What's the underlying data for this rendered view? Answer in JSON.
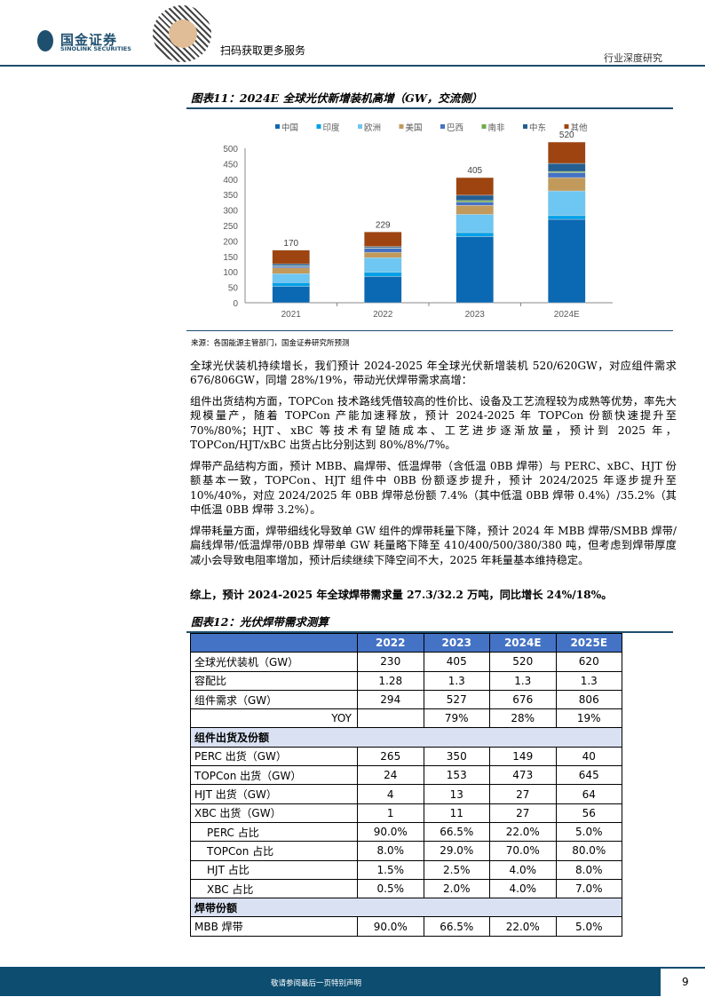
{
  "header": {
    "logo_cn": "国金证券",
    "logo_en": "SINOLINK SECURITIES",
    "scan_text": "扫码获取更多服务",
    "doc_type": "行业深度研究"
  },
  "figure11": {
    "title": "图表11：2024E 全球光伏新增装机高增（GW，交流侧）",
    "source": "来源：各国能源主管部门，国金证券研究所预测"
  },
  "chart_data": {
    "type": "bar",
    "stacked": true,
    "title": "2024E 全球光伏新增装机高增（GW，交流侧）",
    "categories": [
      "2021",
      "2022",
      "2023",
      "2024E"
    ],
    "totals": [
      "170",
      "229",
      "405",
      "520"
    ],
    "ylim": [
      0,
      500
    ],
    "yticks": [
      "0",
      "50",
      "100",
      "150",
      "200",
      "250",
      "300",
      "350",
      "400",
      "450",
      "500"
    ],
    "legend_position": "top",
    "series": [
      {
        "name": "中国",
        "color": "#0b68b3",
        "values": [
          53,
          85,
          214,
          270
        ]
      },
      {
        "name": "印度",
        "color": "#00a0e9",
        "values": [
          12,
          14,
          13,
          12
        ]
      },
      {
        "name": "欧洲",
        "color": "#6ec6f2",
        "values": [
          29,
          47,
          59,
          80
        ]
      },
      {
        "name": "美国",
        "color": "#c19a5b",
        "values": [
          19,
          17,
          29,
          43
        ]
      },
      {
        "name": "巴西",
        "color": "#4472c4",
        "values": [
          5,
          13,
          11,
          16
        ]
      },
      {
        "name": "南非",
        "color": "#70ad47",
        "values": [
          2,
          2,
          5,
          4
        ]
      },
      {
        "name": "中东",
        "color": "#255e91",
        "values": [
          6,
          4,
          17,
          26
        ]
      },
      {
        "name": "其他",
        "color": "#9e4410",
        "values": [
          44,
          47,
          57,
          69
        ]
      }
    ]
  },
  "paragraphs": [
    "全球光伏装机持续增长，我们预计 2024-2025 年全球光伏新增装机 520/620GW，对应组件需求 676/806GW，同增 28%/19%，带动光伏焊带需求高增：",
    "组件出货结构方面，TOPCon 技术路线凭借较高的性价比、设备及工艺流程较为成熟等优势，率先大规模量产，随着 TOPCon 产能加速释放，预计 2024-2025 年 TOPCon 份额快速提升至 70%/80%；HJT、xBC 等技术有望随成本、工艺进步逐渐放量，预计到 2025 年，TOPCon/HJT/xBC 出货占比分别达到 80%/8%/7%。",
    "焊带产品结构方面，预计 MBB、扁焊带、低温焊带（含低温 0BB 焊带）与 PERC、xBC、HJT 份额基本一致，TOPCon、HJT 组件中 0BB 份额逐步提升，预计 2024/2025 年逐步提升至 10%/40%，对应 2024/2025 年 0BB 焊带总份额 7.4%（其中低温 0BB 焊带 0.4%）/35.2%（其中低温 0BB 焊带 3.2%）。",
    "焊带耗量方面，焊带细线化导致单 GW 组件的焊带耗量下降，预计 2024 年 MBB 焊带/SMBB 焊带/扁线焊带/低温焊带/0BB 焊带单 GW 耗量略下降至 410/400/500/380/380 吨，但考虑到焊带厚度减小会导致电阻率增加，预计后续继续下降空间不大，2025 年耗量基本维持稳定。"
  ],
  "summary": "综上，预计 2024-2025 年全球焊带需求量 27.3/32.2 万吨，同比增长 24%/18%。",
  "figure12": {
    "title": "图表12：光伏焊带需求测算",
    "headers": [
      "",
      "2022",
      "2023",
      "2024E",
      "2025E"
    ],
    "rows": [
      {
        "type": "row",
        "cells": [
          "全球光伏装机（GW）",
          "230",
          "405",
          "520",
          "620"
        ]
      },
      {
        "type": "row",
        "cells": [
          "容配比",
          "1.28",
          "1.3",
          "1.3",
          "1.3"
        ]
      },
      {
        "type": "row",
        "cells": [
          "组件需求（GW）",
          "294",
          "527",
          "676",
          "806"
        ]
      },
      {
        "type": "yoy",
        "cells": [
          "YOY",
          "",
          "79%",
          "28%",
          "19%"
        ]
      },
      {
        "type": "section",
        "cells": [
          "组件出货及份额"
        ]
      },
      {
        "type": "row",
        "cells": [
          "PERC 出货（GW）",
          "265",
          "350",
          "149",
          "40"
        ]
      },
      {
        "type": "row",
        "cells": [
          "TOPCon 出货（GW）",
          "24",
          "153",
          "473",
          "645"
        ]
      },
      {
        "type": "row",
        "cells": [
          "HJT 出货（GW）",
          "4",
          "13",
          "27",
          "64"
        ]
      },
      {
        "type": "row",
        "cells": [
          "XBC 出货（GW）",
          "1",
          "11",
          "27",
          "56"
        ]
      },
      {
        "type": "indent",
        "cells": [
          "PERC 占比",
          "90.0%",
          "66.5%",
          "22.0%",
          "5.0%"
        ]
      },
      {
        "type": "indent",
        "cells": [
          "TOPCon 占比",
          "8.0%",
          "29.0%",
          "70.0%",
          "80.0%"
        ]
      },
      {
        "type": "indent",
        "cells": [
          "HJT 占比",
          "1.5%",
          "2.5%",
          "4.0%",
          "8.0%"
        ]
      },
      {
        "type": "indent",
        "cells": [
          "XBC 占比",
          "0.5%",
          "2.0%",
          "4.0%",
          "7.0%"
        ]
      },
      {
        "type": "section",
        "cells": [
          "焊带份额"
        ]
      },
      {
        "type": "row",
        "cells": [
          "MBB 焊带",
          "90.0%",
          "66.5%",
          "22.0%",
          "5.0%"
        ]
      }
    ]
  },
  "footer": {
    "disclaimer": "敬请参阅最后一页特别声明",
    "page_number": "9"
  }
}
